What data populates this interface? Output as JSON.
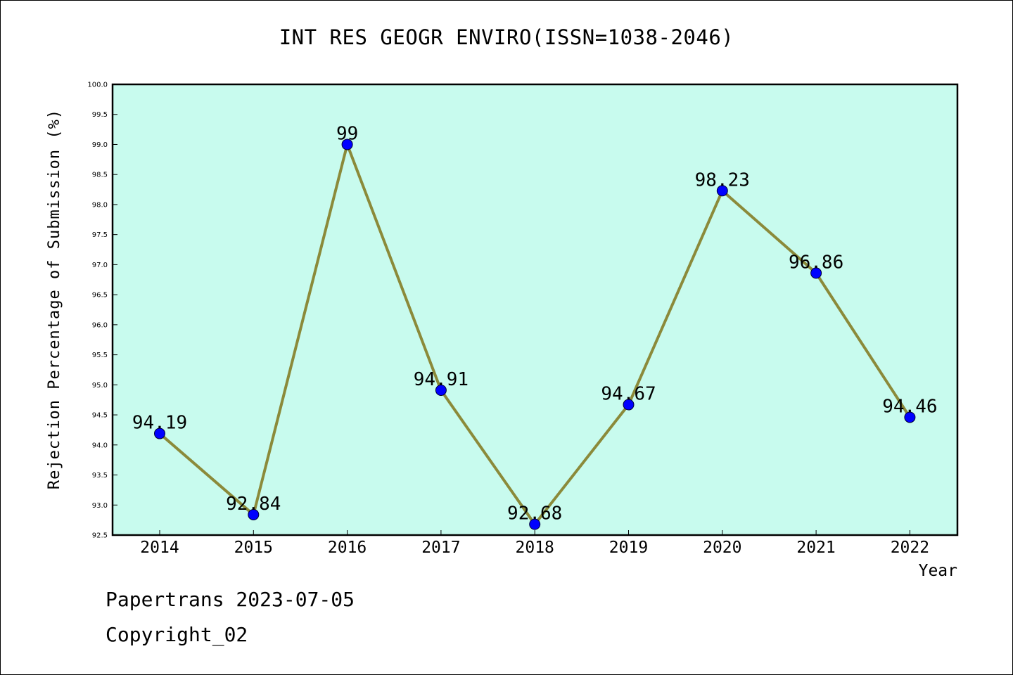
{
  "chart_data": {
    "type": "line",
    "title": "INT RES GEOGR ENVIRO(ISSN=1038-2046)",
    "xlabel": "Year",
    "ylabel": "Rejection Percentage of Submission (%)",
    "categories": [
      "2014",
      "2015",
      "2016",
      "2017",
      "2018",
      "2019",
      "2020",
      "2021",
      "2022"
    ],
    "series": [
      {
        "values": [
          94.19,
          92.84,
          99,
          94.91,
          92.68,
          94.67,
          98.23,
          96.86,
          94.46
        ],
        "labels": [
          "94.19",
          "92.84",
          "99",
          "94.91",
          "92.68",
          "94.67",
          "98.23",
          "96.86",
          "94.46"
        ]
      }
    ],
    "ylim": [
      92.5,
      100.0
    ],
    "yticks": [
      "92.5",
      "93.0",
      "93.5",
      "94.0",
      "94.5",
      "95.0",
      "95.5",
      "96.0",
      "96.5",
      "97.0",
      "97.5",
      "98.0",
      "98.5",
      "99.0",
      "99.5",
      "100.0"
    ],
    "grid": false,
    "colors": {
      "plot_background": "#c8fbee",
      "line": "#8b8a3a",
      "marker": "#0000ff"
    }
  },
  "footer": {
    "line1": "Papertrans 2023-07-05",
    "line2": "Copyright_02"
  }
}
